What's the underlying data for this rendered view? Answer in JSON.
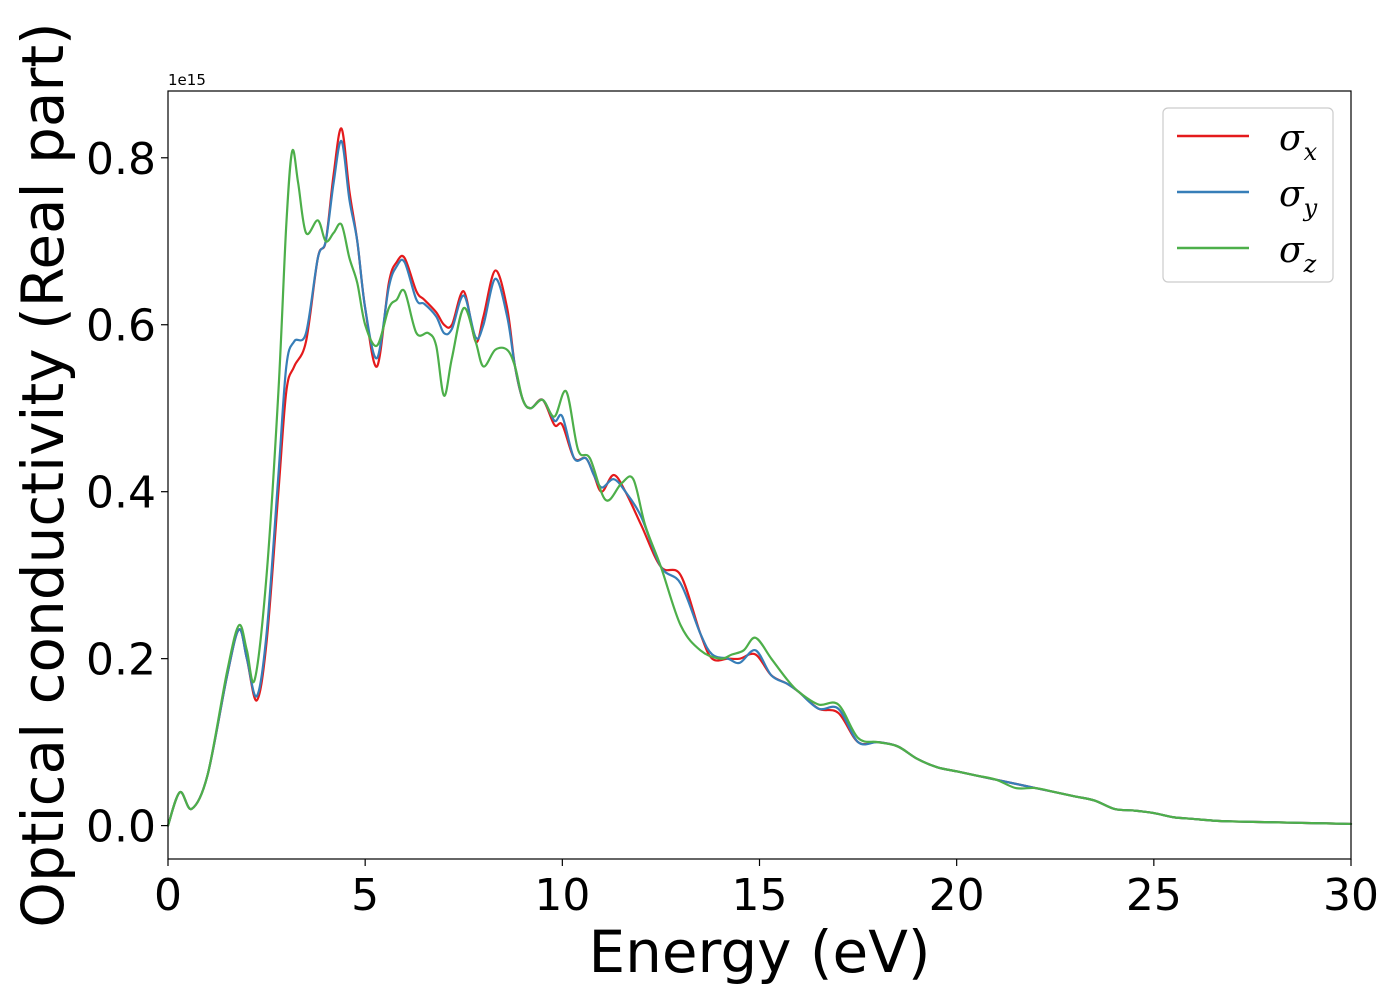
{
  "chart_data": {
    "type": "line",
    "xlabel": "Energy (eV)",
    "ylabel": "Optical conductivity (Real part)",
    "y_offset_label": "1e15",
    "xlim": [
      0,
      30
    ],
    "ylim": [
      -0.04,
      0.88
    ],
    "xticks": [
      0,
      5,
      10,
      15,
      20,
      25,
      30
    ],
    "xtick_labels": [
      "0",
      "5",
      "10",
      "15",
      "20",
      "25",
      "30"
    ],
    "yticks": [
      0.0,
      0.2,
      0.4,
      0.6,
      0.8
    ],
    "ytick_labels": [
      "0.0",
      "0.2",
      "0.4",
      "0.6",
      "0.8"
    ],
    "grid": false,
    "legend_position": "top-right",
    "series": [
      {
        "name": "σ",
        "subscript": "x",
        "color": "#e41a1c",
        "x": [
          0,
          0.3,
          0.6,
          1.0,
          1.5,
          1.8,
          2.0,
          2.25,
          2.5,
          2.8,
          3.0,
          3.2,
          3.5,
          3.8,
          4.0,
          4.2,
          4.4,
          4.6,
          4.8,
          5.0,
          5.3,
          5.6,
          5.8,
          6.0,
          6.3,
          6.5,
          6.8,
          7.0,
          7.2,
          7.5,
          7.8,
          8.0,
          8.3,
          8.6,
          8.8,
          9.0,
          9.2,
          9.5,
          9.8,
          10.0,
          10.3,
          10.6,
          10.8,
          11.0,
          11.3,
          11.6,
          12.0,
          12.5,
          13.0,
          13.5,
          13.8,
          14.2,
          14.5,
          14.9,
          15.3,
          15.7,
          16.0,
          16.5,
          17.0,
          17.5,
          18.0,
          18.5,
          19.0,
          19.5,
          20.0,
          20.5,
          21.0,
          21.5,
          22.0,
          22.5,
          23.0,
          23.5,
          24.0,
          24.5,
          25.0,
          25.5,
          26.0,
          26.5,
          27.0,
          28.0,
          29.0,
          30.0
        ],
        "y": [
          0.0,
          0.04,
          0.02,
          0.06,
          0.18,
          0.235,
          0.2,
          0.15,
          0.22,
          0.4,
          0.52,
          0.55,
          0.58,
          0.68,
          0.7,
          0.78,
          0.835,
          0.76,
          0.7,
          0.62,
          0.55,
          0.65,
          0.675,
          0.68,
          0.64,
          0.63,
          0.615,
          0.6,
          0.6,
          0.64,
          0.58,
          0.61,
          0.665,
          0.62,
          0.55,
          0.51,
          0.5,
          0.51,
          0.48,
          0.48,
          0.44,
          0.44,
          0.42,
          0.4,
          0.42,
          0.4,
          0.36,
          0.31,
          0.3,
          0.23,
          0.2,
          0.2,
          0.2,
          0.205,
          0.18,
          0.17,
          0.16,
          0.14,
          0.135,
          0.1,
          0.1,
          0.095,
          0.08,
          0.07,
          0.065,
          0.06,
          0.055,
          0.05,
          0.045,
          0.04,
          0.035,
          0.03,
          0.02,
          0.018,
          0.015,
          0.01,
          0.008,
          0.006,
          0.005,
          0.004,
          0.003,
          0.002
        ]
      },
      {
        "name": "σ",
        "subscript": "y",
        "color": "#377eb8",
        "x": [
          0,
          0.3,
          0.6,
          1.0,
          1.5,
          1.8,
          2.0,
          2.25,
          2.5,
          2.8,
          3.0,
          3.2,
          3.5,
          3.8,
          4.0,
          4.2,
          4.4,
          4.6,
          4.8,
          5.0,
          5.3,
          5.6,
          5.8,
          6.0,
          6.3,
          6.5,
          6.8,
          7.0,
          7.2,
          7.5,
          7.8,
          8.0,
          8.3,
          8.6,
          8.8,
          9.0,
          9.2,
          9.5,
          9.8,
          10.0,
          10.3,
          10.6,
          10.8,
          11.0,
          11.3,
          11.6,
          12.0,
          12.5,
          13.0,
          13.5,
          13.8,
          14.2,
          14.5,
          14.9,
          15.3,
          15.7,
          16.0,
          16.5,
          17.0,
          17.5,
          18.0,
          18.5,
          19.0,
          19.5,
          20.0,
          20.5,
          21.0,
          21.5,
          22.0,
          22.5,
          23.0,
          23.5,
          24.0,
          24.5,
          25.0,
          25.5,
          26.0,
          26.5,
          27.0,
          28.0,
          29.0,
          30.0
        ],
        "y": [
          0.0,
          0.04,
          0.02,
          0.06,
          0.18,
          0.235,
          0.2,
          0.155,
          0.23,
          0.42,
          0.55,
          0.58,
          0.59,
          0.68,
          0.7,
          0.77,
          0.82,
          0.75,
          0.7,
          0.62,
          0.56,
          0.645,
          0.67,
          0.675,
          0.63,
          0.625,
          0.61,
          0.59,
          0.595,
          0.635,
          0.585,
          0.6,
          0.655,
          0.61,
          0.55,
          0.51,
          0.5,
          0.51,
          0.485,
          0.49,
          0.44,
          0.44,
          0.42,
          0.405,
          0.415,
          0.4,
          0.37,
          0.31,
          0.29,
          0.23,
          0.205,
          0.2,
          0.195,
          0.21,
          0.18,
          0.17,
          0.16,
          0.14,
          0.14,
          0.1,
          0.1,
          0.095,
          0.08,
          0.07,
          0.065,
          0.06,
          0.055,
          0.05,
          0.045,
          0.04,
          0.035,
          0.03,
          0.02,
          0.018,
          0.015,
          0.01,
          0.008,
          0.006,
          0.005,
          0.004,
          0.003,
          0.002
        ]
      },
      {
        "name": "σ",
        "subscript": "z",
        "color": "#4daf4a",
        "x": [
          0,
          0.3,
          0.6,
          1.0,
          1.5,
          1.8,
          2.0,
          2.2,
          2.5,
          2.8,
          3.0,
          3.15,
          3.3,
          3.5,
          3.8,
          4.0,
          4.2,
          4.4,
          4.6,
          4.8,
          5.0,
          5.3,
          5.6,
          5.8,
          6.0,
          6.3,
          6.6,
          6.8,
          7.0,
          7.2,
          7.5,
          7.8,
          8.0,
          8.3,
          8.6,
          8.8,
          9.0,
          9.2,
          9.5,
          9.8,
          10.1,
          10.4,
          10.7,
          11.1,
          11.5,
          11.8,
          12.1,
          12.5,
          13.0,
          13.5,
          14.0,
          14.3,
          14.6,
          14.9,
          15.3,
          15.7,
          16.0,
          16.5,
          17.0,
          17.5,
          18.0,
          18.5,
          19.0,
          19.5,
          20.0,
          20.5,
          21.0,
          21.5,
          22.0,
          22.5,
          23.0,
          23.5,
          24.0,
          24.5,
          25.0,
          25.5,
          26.0,
          26.5,
          27.0,
          28.0,
          29.0,
          30.0
        ],
        "y": [
          0.0,
          0.04,
          0.02,
          0.06,
          0.185,
          0.24,
          0.21,
          0.175,
          0.3,
          0.52,
          0.72,
          0.808,
          0.77,
          0.71,
          0.725,
          0.7,
          0.71,
          0.72,
          0.68,
          0.65,
          0.6,
          0.575,
          0.62,
          0.63,
          0.64,
          0.59,
          0.59,
          0.575,
          0.515,
          0.56,
          0.62,
          0.58,
          0.55,
          0.57,
          0.57,
          0.55,
          0.51,
          0.5,
          0.51,
          0.49,
          0.52,
          0.45,
          0.44,
          0.39,
          0.41,
          0.415,
          0.36,
          0.31,
          0.24,
          0.21,
          0.2,
          0.205,
          0.21,
          0.225,
          0.2,
          0.175,
          0.16,
          0.145,
          0.145,
          0.105,
          0.1,
          0.095,
          0.08,
          0.07,
          0.065,
          0.06,
          0.055,
          0.045,
          0.045,
          0.04,
          0.035,
          0.03,
          0.02,
          0.018,
          0.015,
          0.01,
          0.008,
          0.006,
          0.005,
          0.004,
          0.003,
          0.002
        ]
      }
    ]
  }
}
